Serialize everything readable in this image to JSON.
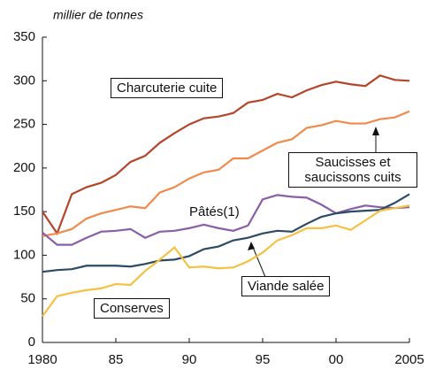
{
  "chart_data": {
    "type": "line",
    "ylabel": "millier de tonnes",
    "x": [
      1980,
      1981,
      1982,
      1983,
      1984,
      1985,
      1986,
      1987,
      1988,
      1989,
      1990,
      1991,
      1992,
      1993,
      1994,
      1995,
      1996,
      1997,
      1998,
      1999,
      2000,
      2001,
      2002,
      2003,
      2004,
      2005
    ],
    "xlim": [
      1980,
      2005
    ],
    "xticks": [
      1980,
      {
        "value": 1985,
        "label": "85"
      },
      {
        "value": 1990,
        "label": "90"
      },
      {
        "value": 1995,
        "label": "95"
      },
      {
        "value": 2000,
        "label": "00"
      },
      2005
    ],
    "ylim": [
      0,
      350
    ],
    "yticks": [
      0,
      50,
      100,
      150,
      200,
      250,
      300,
      350
    ],
    "grid": false,
    "series": [
      {
        "name": "Charcuterie cuite",
        "color": "#b5452a",
        "values": [
          150,
          125,
          170,
          178,
          183,
          192,
          207,
          214,
          229,
          240,
          250,
          257,
          259,
          263,
          275,
          278,
          285,
          281,
          289,
          295,
          299,
          296,
          294,
          306,
          301,
          300
        ]
      },
      {
        "name": "Saucisses et saucissons cuits",
        "color": "#f08a4b",
        "values": [
          122,
          125,
          130,
          142,
          148,
          152,
          156,
          154,
          172,
          178,
          188,
          195,
          198,
          211,
          211,
          220,
          229,
          233,
          246,
          249,
          254,
          251,
          251,
          256,
          258,
          265
        ]
      },
      {
        "name": "Pâtés(1)",
        "color": "#8b5ea8",
        "values": [
          126,
          112,
          112,
          120,
          127,
          128,
          130,
          120,
          127,
          128,
          131,
          135,
          131,
          128,
          134,
          164,
          169,
          167,
          166,
          158,
          148,
          153,
          157,
          155,
          154,
          155
        ]
      },
      {
        "name": "Viande salée",
        "color": "#2c4a63",
        "values": [
          81,
          83,
          84,
          88,
          88,
          88,
          87,
          90,
          94,
          95,
          99,
          107,
          110,
          117,
          120,
          125,
          128,
          127,
          136,
          144,
          148,
          150,
          151,
          152,
          160,
          170
        ]
      },
      {
        "name": "Conserves",
        "color": "#f5c142",
        "values": [
          30,
          53,
          57,
          60,
          62,
          67,
          66,
          82,
          95,
          109,
          86,
          87,
          85,
          86,
          93,
          103,
          117,
          123,
          131,
          131,
          134,
          129,
          140,
          151,
          154,
          157
        ]
      }
    ]
  }
}
